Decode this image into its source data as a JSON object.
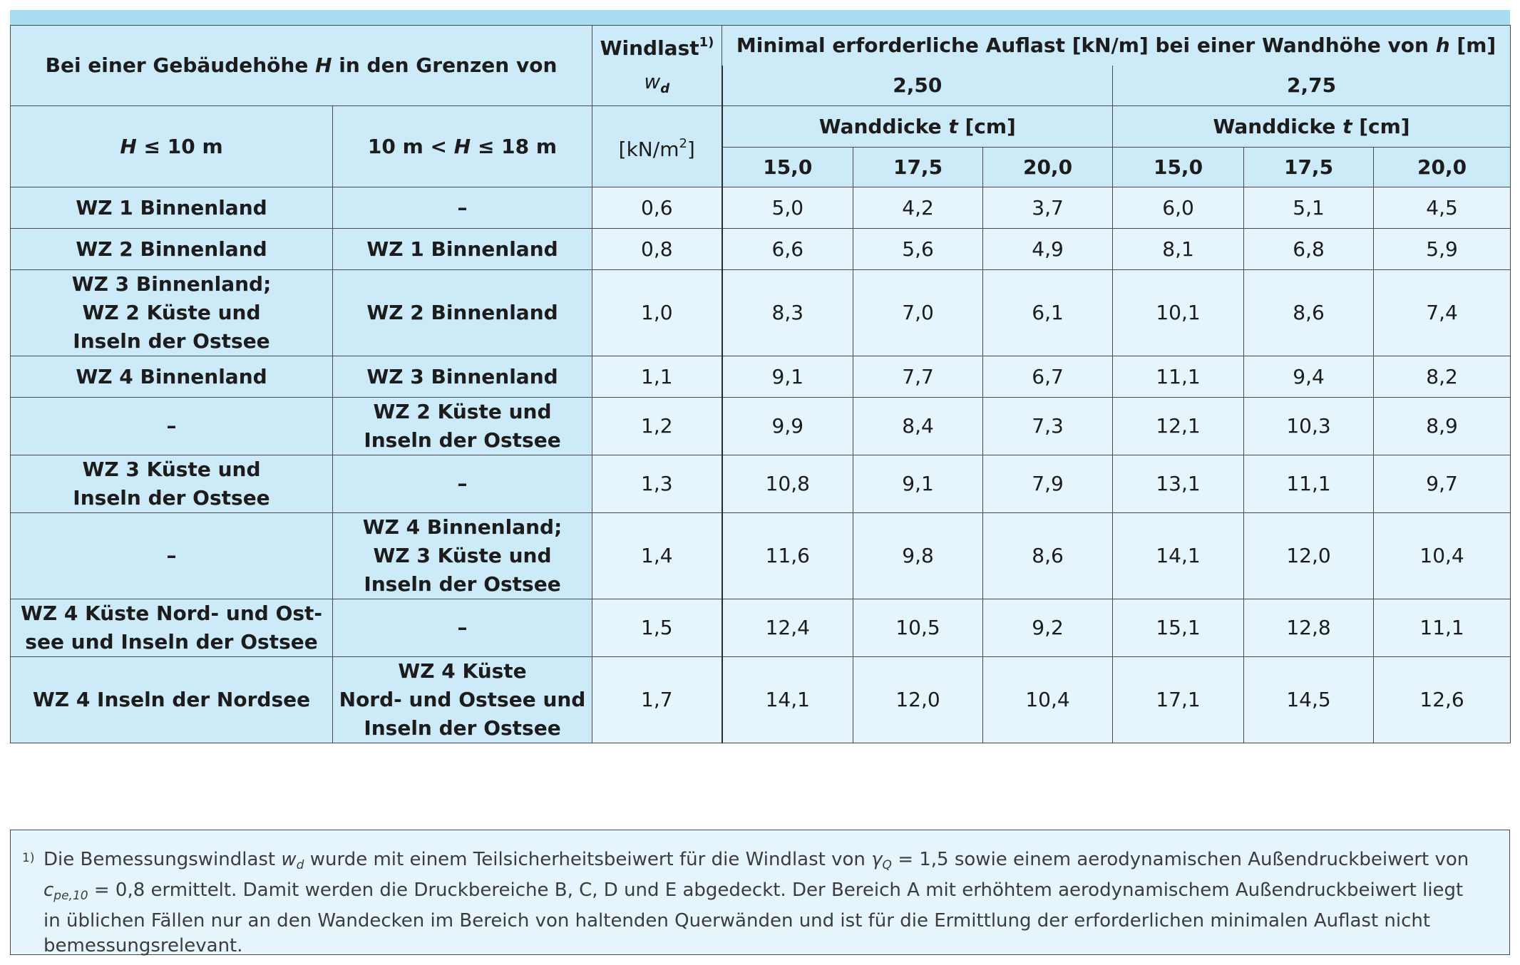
{
  "header": {
    "building_height": "Bei einer Gebäudehöhe",
    "building_height_sym": "H",
    "building_height_rest": "in den Grenzen von",
    "windlast": "Windlast",
    "windlast_sup": "1)",
    "wd_sym": "w",
    "wd_sub": "d",
    "min_load": "Minimal erforderliche Auflast [kN/m] bei einer Wandhöhe von",
    "min_load_sym": "h",
    "min_load_unit": "[m]",
    "h_values": [
      "2,50",
      "2,75"
    ],
    "h_range_1_sym": "H",
    "h_range_1_rest": "≤ 10 m",
    "h_range_2_pre": "10 m <",
    "h_range_2_sym": "H",
    "h_range_2_rest": "≤ 18 m",
    "unit_pre": "[kN/m",
    "unit_sup": "2",
    "unit_post": "]",
    "wall_thickness": "Wanddicke",
    "wall_thickness_sym": "t",
    "wall_thickness_unit": "[cm]",
    "thickness_values": [
      "15,0",
      "17,5",
      "20,0",
      "15,0",
      "17,5",
      "20,0"
    ]
  },
  "rows": [
    {
      "c1": [
        "WZ 1 Binnenland"
      ],
      "c2": [
        "–"
      ],
      "wd": "0,6",
      "v": [
        "5,0",
        "4,2",
        "3,7",
        "6,0",
        "5,1",
        "4,5"
      ]
    },
    {
      "c1": [
        "WZ 2 Binnenland"
      ],
      "c2": [
        "WZ 1 Binnenland"
      ],
      "wd": "0,8",
      "v": [
        "6,6",
        "5,6",
        "4,9",
        "8,1",
        "6,8",
        "5,9"
      ]
    },
    {
      "c1": [
        "WZ 3 Binnenland;",
        "WZ 2 Küste und",
        "Inseln der Ostsee"
      ],
      "c2": [
        "WZ 2 Binnenland"
      ],
      "wd": "1,0",
      "v": [
        "8,3",
        "7,0",
        "6,1",
        "10,1",
        "8,6",
        "7,4"
      ]
    },
    {
      "c1": [
        "WZ 4 Binnenland"
      ],
      "c2": [
        "WZ 3 Binnenland"
      ],
      "wd": "1,1",
      "v": [
        "9,1",
        "7,7",
        "6,7",
        "11,1",
        "9,4",
        "8,2"
      ]
    },
    {
      "c1": [
        "–"
      ],
      "c2": [
        "WZ 2 Küste und",
        "Inseln der Ostsee"
      ],
      "wd": "1,2",
      "v": [
        "9,9",
        "8,4",
        "7,3",
        "12,1",
        "10,3",
        "8,9"
      ]
    },
    {
      "c1": [
        "WZ 3 Küste und",
        "Inseln der Ostsee"
      ],
      "c2": [
        "–"
      ],
      "wd": "1,3",
      "v": [
        "10,8",
        "9,1",
        "7,9",
        "13,1",
        "11,1",
        "9,7"
      ]
    },
    {
      "c1": [
        "–"
      ],
      "c2": [
        "WZ 4 Binnenland;",
        "WZ 3 Küste und",
        "Inseln der Ostsee"
      ],
      "wd": "1,4",
      "v": [
        "11,6",
        "9,8",
        "8,6",
        "14,1",
        "12,0",
        "10,4"
      ]
    },
    {
      "c1": [
        "WZ 4 Küste Nord- und Ost-",
        "see und Inseln der Ostsee"
      ],
      "c2": [
        "–"
      ],
      "wd": "1,5",
      "v": [
        "12,4",
        "10,5",
        "9,2",
        "15,1",
        "12,8",
        "11,1"
      ]
    },
    {
      "c1": [
        "WZ 4 Inseln der Nordsee"
      ],
      "c2": [
        "WZ 4 Küste",
        "Nord- und Ostsee und",
        "Inseln der Ostsee"
      ],
      "wd": "1,7",
      "v": [
        "14,1",
        "12,0",
        "10,4",
        "17,1",
        "14,5",
        "12,6"
      ]
    }
  ],
  "footnote": {
    "mark": "1)",
    "t1": "Die Bemessungswindlast",
    "wd_sym": "w",
    "wd_sub": "d",
    "t2": "wurde mit einem Teilsicherheitsbeiwert für die Windlast von",
    "gamma_sym": "γ",
    "gamma_sub": "Q",
    "t3": "= 1,5 sowie einem aerodynamischen Außendruckbeiwert von",
    "cpe_sym": "c",
    "cpe_sub": "pe,10",
    "t4": "= 0,8 ermittelt. Damit werden die Druckbereiche B, C, D und E abgedeckt. Der Bereich A mit erhöhtem aerodynamischem Außendruckbeiwert liegt in üblichen Fällen nur an den Wandecken im Bereich von haltenden Querwänden und ist für die Ermittlung der erforderlichen minimalen Auflast nicht bemessungsrelevant."
  },
  "colors": {
    "header_bg": "#cdeaf8",
    "value_bg": "#e6f4fc",
    "top_bar": "#a9dcf3",
    "border": "#4a4a4a"
  }
}
